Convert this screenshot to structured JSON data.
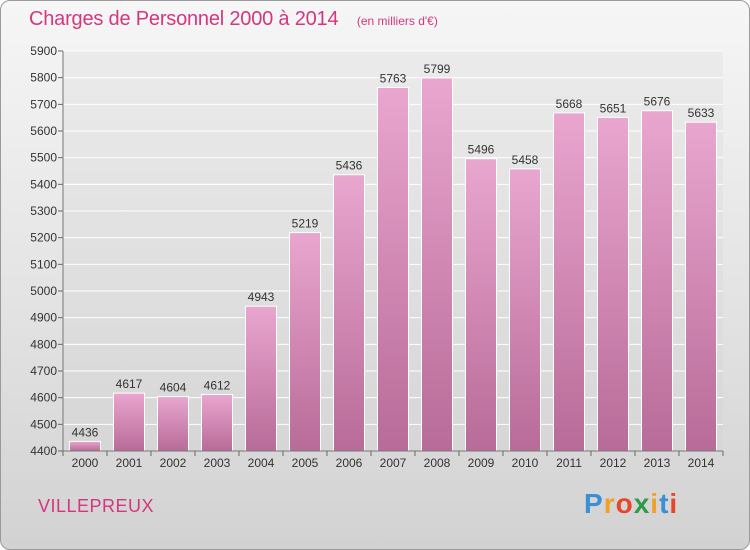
{
  "chart_title": "Charges de Personnel 2000 à 2014",
  "chart_unit": "(en milliers d'€)",
  "commune": "VILLEPREUX",
  "logo": {
    "text": "Proxiti",
    "letters": [
      "P",
      "r",
      "o",
      "x",
      "i",
      "t",
      "i"
    ],
    "colors": [
      "#3a8fd6",
      "#f0a12b",
      "#e8462b",
      "#2e9b48",
      "#f0a12b",
      "#3a8fd6",
      "#e8462b"
    ]
  },
  "colors": {
    "title": "#d4377f",
    "bar_top": "#e9a6cf",
    "bar_bottom": "#b86b98",
    "grid": "#ffffff",
    "axis_text": "#333333"
  },
  "chart_data": {
    "type": "bar",
    "title": "Charges de Personnel 2000 à 2014",
    "subtitle": "(en milliers d'€)",
    "categories": [
      "2000",
      "2001",
      "2002",
      "2003",
      "2004",
      "2005",
      "2006",
      "2007",
      "2008",
      "2009",
      "2010",
      "2011",
      "2012",
      "2013",
      "2014"
    ],
    "values": [
      4436,
      4617,
      4604,
      4612,
      4943,
      5219,
      5436,
      5763,
      5799,
      5496,
      5458,
      5668,
      5651,
      5676,
      5633
    ],
    "ylim": [
      4400,
      5900
    ],
    "yticks": [
      4400,
      4500,
      4600,
      4700,
      4800,
      4900,
      5000,
      5100,
      5200,
      5300,
      5400,
      5500,
      5600,
      5700,
      5800,
      5900
    ],
    "grid": true
  }
}
